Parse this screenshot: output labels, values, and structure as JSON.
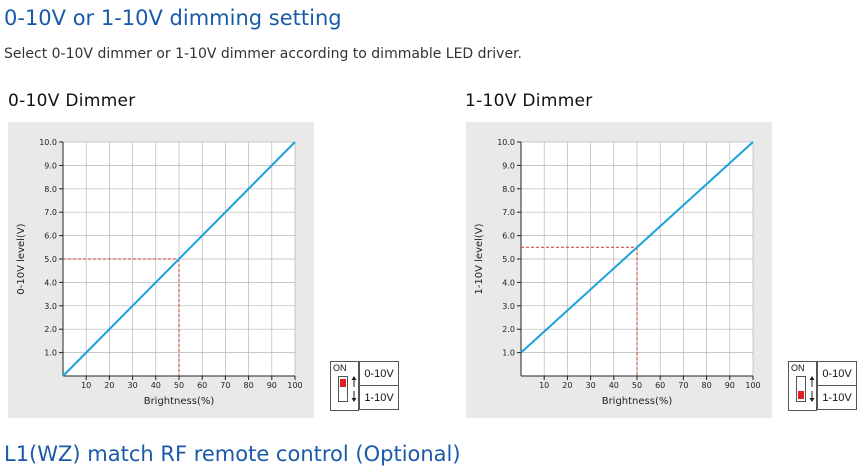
{
  "heading": "0-10V or 1-10V dimming setting",
  "intro": "Select 0-10V dimmer or 1-10V dimmer according to dimmable LED driver.",
  "footer_heading": "L1(WZ) match RF remote control (Optional)",
  "colors": {
    "line": "#1aa3d9",
    "guide": "#d0342c",
    "heading": "#1a5aa8",
    "panel": "#e9e9e9",
    "knob": "#e02020"
  },
  "switch": {
    "on_label": "ON",
    "option_top": "0-10V",
    "option_bottom": "1-10V"
  },
  "chart_data": [
    {
      "type": "line",
      "title": "0-10V Dimmer",
      "xlabel": "Brightness(%)",
      "ylabel": "0-10V level(V)",
      "x_ticks": [
        "10",
        "20",
        "30",
        "40",
        "50",
        "60",
        "70",
        "80",
        "90",
        "100"
      ],
      "y_ticks": [
        "1.0",
        "2.0",
        "3.0",
        "4.0",
        "5.0",
        "6.0",
        "7.0",
        "8.0",
        "9.0",
        "10.0"
      ],
      "xlim": [
        0,
        100
      ],
      "ylim": [
        0,
        10
      ],
      "grid": true,
      "series": [
        {
          "x": [
            0,
            100
          ],
          "y": [
            0.0,
            10.0
          ]
        }
      ],
      "guide": {
        "x": 50,
        "y": 5.0
      },
      "switch_position": "top"
    },
    {
      "type": "line",
      "title": "1-10V Dimmer",
      "xlabel": "Brightness(%)",
      "ylabel": "1-10V level(V)",
      "x_ticks": [
        "10",
        "20",
        "30",
        "40",
        "50",
        "60",
        "70",
        "80",
        "90",
        "100"
      ],
      "y_ticks": [
        "1.0",
        "2.0",
        "3.0",
        "4.0",
        "5.0",
        "6.0",
        "7.0",
        "8.0",
        "9.0",
        "10.0"
      ],
      "xlim": [
        0,
        100
      ],
      "ylim": [
        0,
        10
      ],
      "grid": true,
      "series": [
        {
          "x": [
            0,
            100
          ],
          "y": [
            1.0,
            10.0
          ]
        }
      ],
      "guide": {
        "x": 50,
        "y": 5.5
      },
      "switch_position": "bottom"
    }
  ]
}
